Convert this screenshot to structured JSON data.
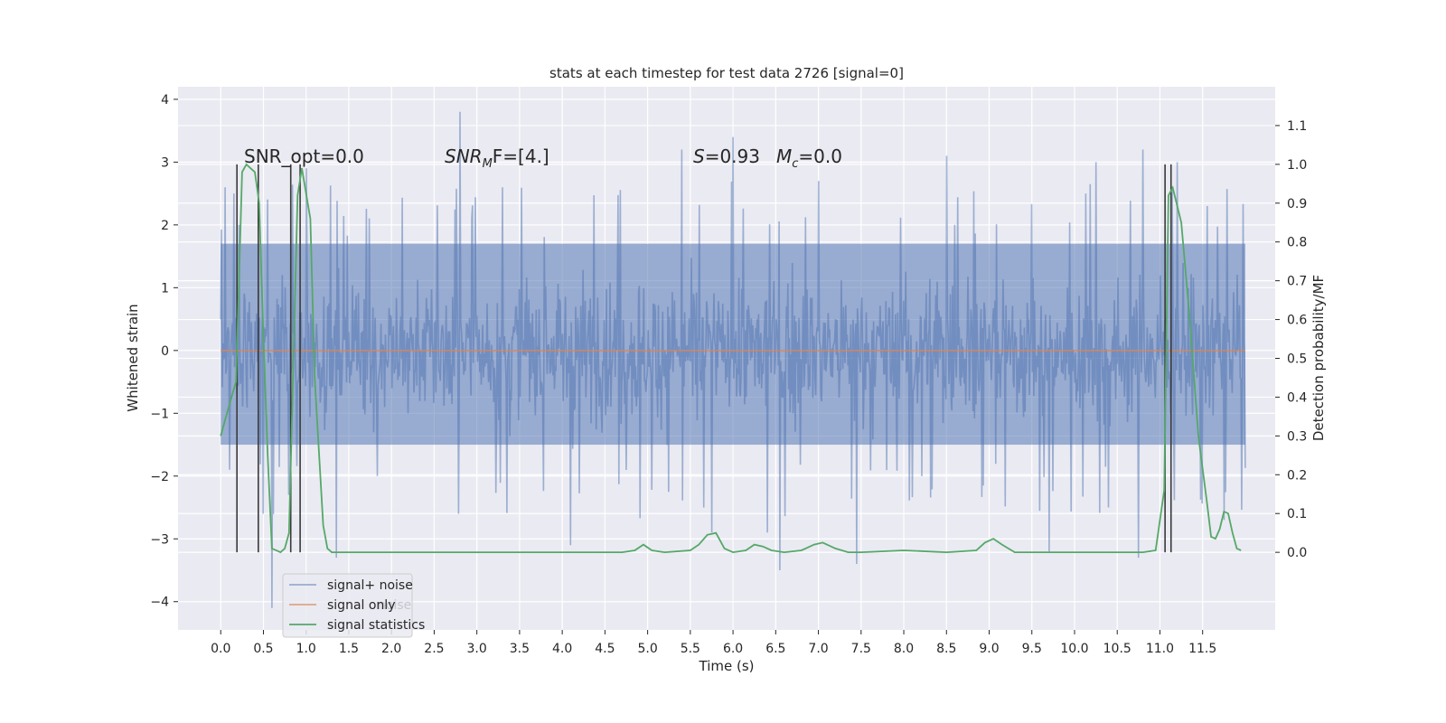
{
  "chart_data": {
    "type": "line",
    "title": "stats at each timestep for test data 2726 [signal=0]",
    "xlabel": "Time (s)",
    "ylabel": "Whitened strain",
    "ylabel_right": "Detection probability/MF",
    "xlim": [
      -0.5,
      12.35
    ],
    "ylim": [
      -4.45,
      4.2
    ],
    "ylim_right": [
      -0.2,
      1.2
    ],
    "x_ticks": [
      0.0,
      0.5,
      1.0,
      1.5,
      2.0,
      2.5,
      3.0,
      3.5,
      4.0,
      4.5,
      5.0,
      5.5,
      6.0,
      6.5,
      7.0,
      7.5,
      8.0,
      8.5,
      9.0,
      9.5,
      10.0,
      10.5,
      11.0,
      11.5
    ],
    "x_tick_labels": [
      "0.0",
      "0.5",
      "1.0",
      "1.5",
      "2.0",
      "2.5",
      "3.0",
      "3.5",
      "4.0",
      "4.5",
      "5.0",
      "5.5",
      "6.0",
      "6.5",
      "7.0",
      "7.5",
      "8.0",
      "8.5",
      "9.0",
      "9.5",
      "10.0",
      "10.5",
      "11.0",
      "11.5"
    ],
    "y_ticks": [
      -4,
      -3,
      -2,
      -1,
      0,
      1,
      2,
      3,
      4
    ],
    "y_tick_labels": [
      "−4",
      "−3",
      "−2",
      "−1",
      "0",
      "1",
      "2",
      "3",
      "4"
    ],
    "y_right_ticks": [
      0.0,
      0.1,
      0.2,
      0.3,
      0.4,
      0.5,
      0.6,
      0.7,
      0.8,
      0.9,
      1.0,
      1.1
    ],
    "y_right_tick_labels": [
      "0.0",
      "0.1",
      "0.2",
      "0.3",
      "0.4",
      "0.5",
      "0.6",
      "0.7",
      "0.8",
      "0.9",
      "1.0",
      "1.1"
    ],
    "grid": true,
    "background": "#eaeaf2",
    "annotations": [
      {
        "text": "SNR_opt=0.0",
        "x": 0.2,
        "y": 3.0
      },
      {
        "text": "SNR_MF=[4.]",
        "x": 2.6,
        "y": 3.0,
        "italic_part": "SNR",
        "subscript": "M",
        "rest": "F=[4.]"
      },
      {
        "text": "S=0.93  M_c=0.0",
        "x": 5.6,
        "y": 3.0,
        "part1_italic": "S",
        "part1_rest": "=0.93",
        "part2_italic": "M",
        "part2_subscript": "c",
        "part2_rest": "=0.0"
      }
    ],
    "series": [
      {
        "name": "signal+ noise",
        "color": "#4c72b0",
        "alpha": 0.5,
        "x_range": [
          0.0,
          12.0
        ],
        "core_band": [
          -1.5,
          1.7
        ],
        "peaks_x": [
          0.05,
          0.1,
          0.15,
          0.5,
          0.6,
          0.8,
          1.0,
          1.35,
          2.8,
          3.3,
          4.1,
          5.4,
          5.75,
          6.0,
          6.4,
          6.55,
          7.0,
          7.45,
          8.5,
          9.7,
          10.25,
          10.4,
          10.75,
          10.8,
          11.2,
          11.55,
          11.75
        ],
        "peaks_y": [
          2.6,
          -1.9,
          2.5,
          -2.6,
          -4.1,
          -2.3,
          2.9,
          -3.3,
          3.8,
          2.6,
          -3.1,
          3.2,
          -2.9,
          3.4,
          -2.9,
          -3.5,
          2.7,
          -3.4,
          3.1,
          -3.2,
          3.0,
          -2.5,
          -3.3,
          3.2,
          3.0,
          2.3,
          -2.7
        ]
      },
      {
        "name": "signal only",
        "color": "#dd8452",
        "x": [
          0.0,
          12.0
        ],
        "y": [
          0.0,
          0.0
        ]
      },
      {
        "name": "signal statistics",
        "color": "#55a868",
        "axis": "right",
        "x": [
          0.0,
          0.1,
          0.18,
          0.25,
          0.3,
          0.4,
          0.45,
          0.5,
          0.55,
          0.6,
          0.7,
          0.75,
          0.8,
          0.9,
          0.95,
          1.05,
          1.1,
          1.2,
          1.25,
          1.3,
          1.5,
          2.0,
          3.0,
          4.0,
          4.7,
          4.85,
          4.95,
          5.05,
          5.2,
          5.5,
          5.6,
          5.7,
          5.8,
          5.9,
          6.0,
          6.15,
          6.25,
          6.35,
          6.45,
          6.6,
          6.8,
          6.95,
          7.05,
          7.2,
          7.35,
          7.5,
          8.0,
          8.5,
          8.85,
          8.95,
          9.05,
          9.15,
          9.3,
          9.6,
          10.0,
          10.5,
          10.8,
          10.95,
          11.05,
          11.1,
          11.15,
          11.25,
          11.35,
          11.45,
          11.55,
          11.6,
          11.65,
          11.7,
          11.75,
          11.8,
          11.85,
          11.9,
          11.95
        ],
        "y": [
          0.3,
          0.38,
          0.44,
          0.98,
          1.0,
          0.98,
          0.9,
          0.55,
          0.25,
          0.01,
          0.0,
          0.01,
          0.05,
          0.92,
          0.99,
          0.86,
          0.45,
          0.07,
          0.01,
          0.0,
          0.0,
          0.0,
          0.0,
          0.0,
          0.0,
          0.005,
          0.02,
          0.005,
          0.0,
          0.005,
          0.02,
          0.045,
          0.05,
          0.01,
          0.0,
          0.005,
          0.02,
          0.015,
          0.005,
          0.0,
          0.005,
          0.02,
          0.025,
          0.01,
          0.0,
          0.0,
          0.005,
          0.0,
          0.005,
          0.025,
          0.035,
          0.02,
          0.0,
          0.0,
          0.0,
          0.0,
          0.0,
          0.005,
          0.16,
          0.92,
          0.94,
          0.85,
          0.6,
          0.3,
          0.13,
          0.04,
          0.035,
          0.06,
          0.105,
          0.1,
          0.05,
          0.01,
          0.005
        ]
      }
    ],
    "vertical_lines": {
      "color": "#3a3a3a",
      "x": [
        0.19,
        0.44,
        0.82,
        0.93,
        11.06,
        11.13
      ],
      "y_range_right": [
        0.0,
        1.0
      ]
    },
    "legend": {
      "placement": "lower-left",
      "entries": [
        "signal+ noise",
        "signal only",
        "signal statistics"
      ],
      "overlapped_text": "noise"
    }
  }
}
